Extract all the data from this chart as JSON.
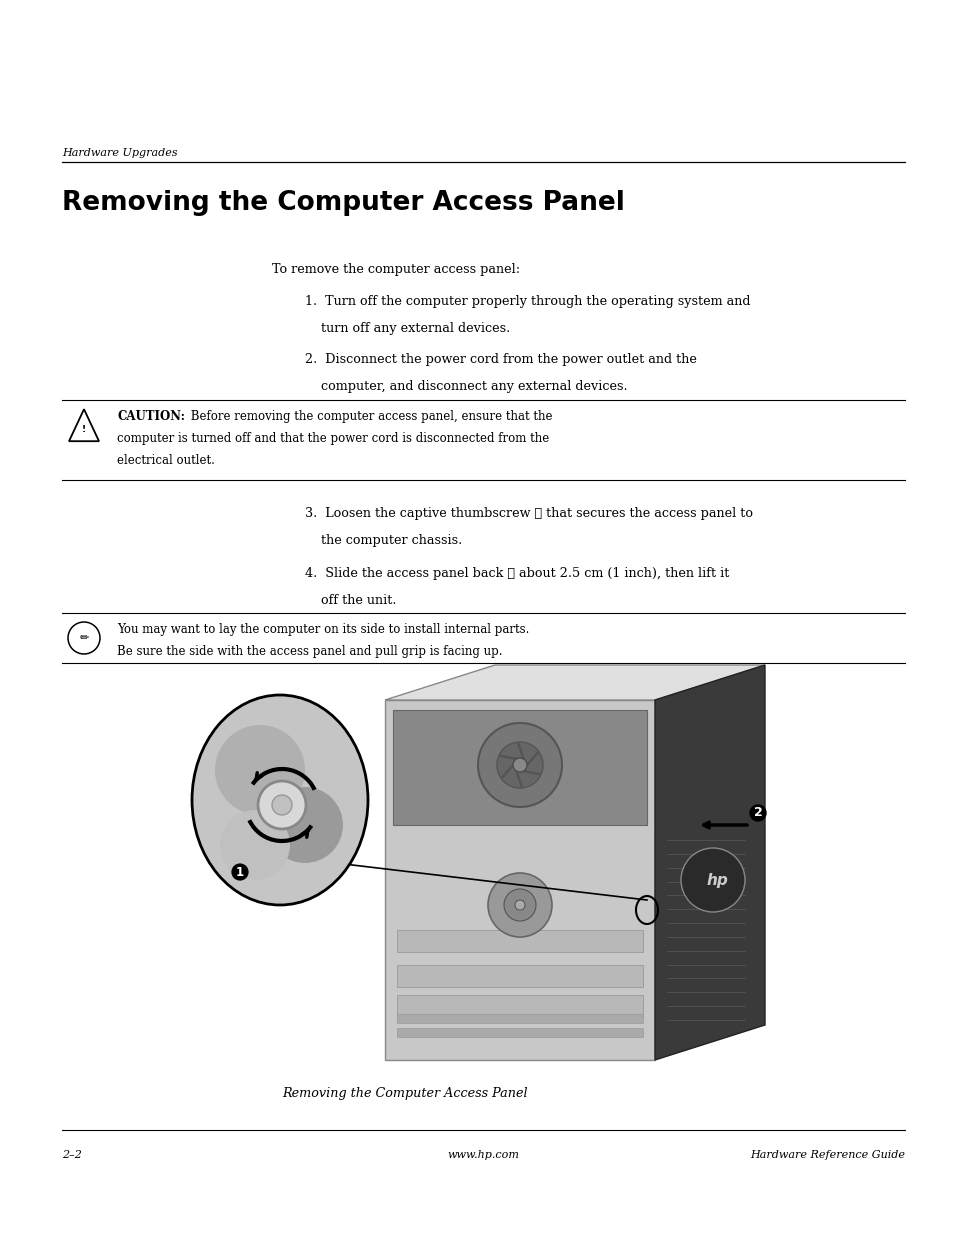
{
  "bg_color": "#ffffff",
  "header_italic": "Hardware Upgrades",
  "title": "Removing the Computer Access Panel",
  "intro_text": "To remove the computer access panel:",
  "step1_line1": "1.  Turn off the computer properly through the operating system and",
  "step1_line2": "    turn off any external devices.",
  "step2_line1": "2.  Disconnect the power cord from the power outlet and the",
  "step2_line2": "    computer, and disconnect any external devices.",
  "caution_bold": "CAUTION:",
  "caution_rest": " Before removing the computer access panel, ensure that the",
  "caution_line2": "computer is turned off and that the power cord is disconnected from the",
  "caution_line3": "electrical outlet.",
  "step3_line1": "3.  Loosen the captive thumbscrew ① that secures the access panel to",
  "step3_line2": "    the computer chassis.",
  "step4_line1": "4.  Slide the access panel back ② about 2.5 cm (1 inch), then lift it",
  "step4_line2": "    off the unit.",
  "note_line1": "You may want to lay the computer on its side to install internal parts.",
  "note_line2": "Be sure the side with the access panel and pull grip is facing up.",
  "image_caption": "Removing the Computer Access Panel",
  "footer_left": "2–2",
  "footer_center": "www.hp.com",
  "footer_right": "Hardware Reference Guide",
  "text_color": "#000000",
  "line_color": "#000000",
  "fig_w": 9.54,
  "fig_h": 12.35,
  "dpi": 100
}
